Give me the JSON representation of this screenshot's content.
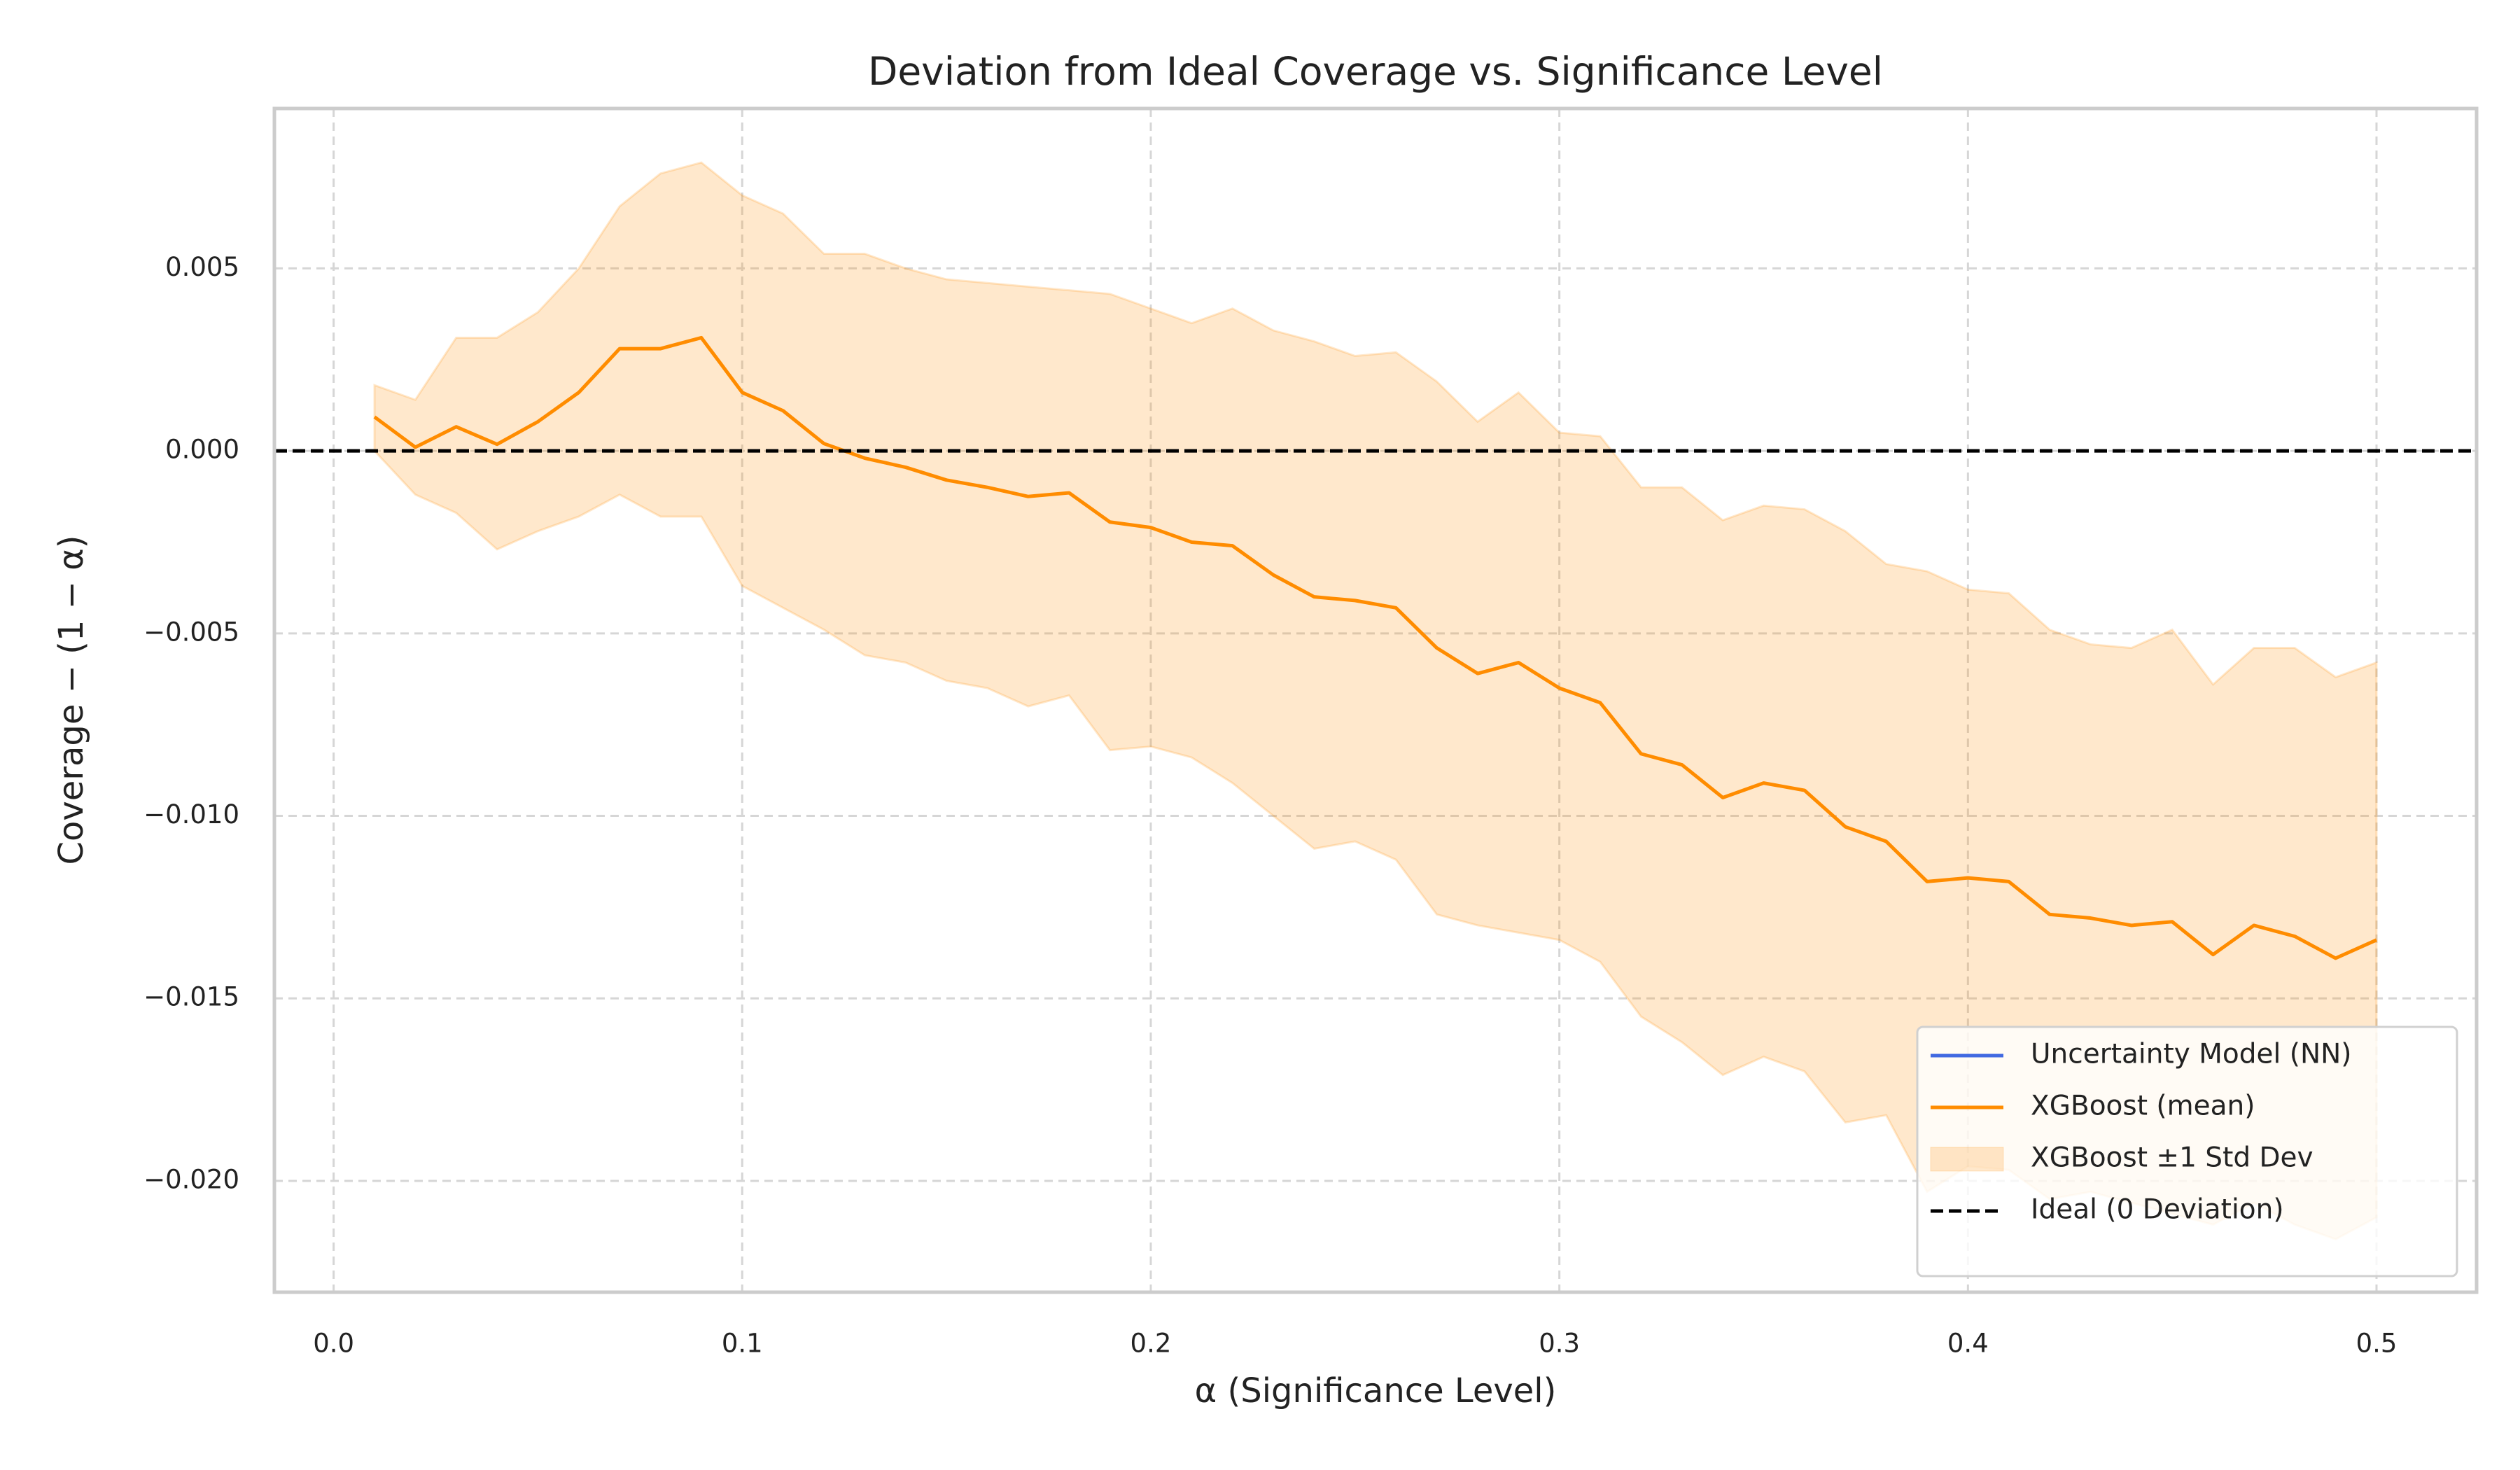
{
  "chart_data": {
    "type": "line",
    "title": "Deviation from Ideal Coverage vs. Significance Level",
    "x_label": "α (Significance Level)",
    "y_label": "Coverage − (1 − α)",
    "x": [
      0.01,
      0.02,
      0.03,
      0.04,
      0.05,
      0.06,
      0.07,
      0.08,
      0.09,
      0.1,
      0.11,
      0.12,
      0.13,
      0.14,
      0.15,
      0.16,
      0.17,
      0.18,
      0.19,
      0.2,
      0.21,
      0.22,
      0.23,
      0.24,
      0.25,
      0.26,
      0.27,
      0.28,
      0.29,
      0.3,
      0.31,
      0.32,
      0.33,
      0.34,
      0.35,
      0.36,
      0.37,
      0.38,
      0.39,
      0.4,
      0.41,
      0.42,
      0.43,
      0.44,
      0.45,
      0.46,
      0.47,
      0.48,
      0.49,
      0.5
    ],
    "series": [
      {
        "name": "Uncertainty Model (NN)",
        "type": "line",
        "color": "#4169e1"
      },
      {
        "name": "XGBoost (mean)",
        "type": "line",
        "color": "#ff8c00",
        "values": [
          0.00093,
          0.0001,
          0.00066,
          0.00018,
          0.0008,
          0.0016,
          0.0028,
          0.0028,
          0.0031,
          0.0016,
          0.0011,
          0.0002,
          -0.0002,
          -0.00045,
          -0.0008,
          -0.001,
          -0.00125,
          -0.00115,
          -0.00195,
          -0.0021,
          -0.0025,
          -0.0026,
          -0.0034,
          -0.004,
          -0.0041,
          -0.0043,
          -0.0054,
          -0.0061,
          -0.0058,
          -0.0065,
          -0.0069,
          -0.0083,
          -0.0086,
          -0.0095,
          -0.0091,
          -0.0093,
          -0.0103,
          -0.0107,
          -0.0118,
          -0.0117,
          -0.0118,
          -0.0127,
          -0.0128,
          -0.013,
          -0.0129,
          -0.0138,
          -0.013,
          -0.0133,
          -0.0139,
          -0.0134
        ]
      },
      {
        "name": "XGBoost ±1 Std Dev",
        "type": "band",
        "color": "#ff8c00",
        "alpha": 0.2,
        "upper": [
          0.0018,
          0.0014,
          0.0031,
          0.0031,
          0.0038,
          0.005,
          0.0067,
          0.0076,
          0.0079,
          0.007,
          0.0065,
          0.0054,
          0.0054,
          0.005,
          0.0047,
          0.0046,
          0.0045,
          0.0044,
          0.0043,
          0.0039,
          0.0035,
          0.0039,
          0.0033,
          0.003,
          0.0026,
          0.0027,
          0.0019,
          0.0008,
          0.0016,
          0.0005,
          0.0004,
          -0.001,
          -0.001,
          -0.0019,
          -0.0015,
          -0.0016,
          -0.0022,
          -0.0031,
          -0.0033,
          -0.0038,
          -0.0039,
          -0.0049,
          -0.0053,
          -0.0054,
          -0.0049,
          -0.0064,
          -0.0054,
          -0.0054,
          -0.0062,
          -0.0058
        ],
        "lower": [
          0.0,
          -0.0012,
          -0.0017,
          -0.0027,
          -0.0022,
          -0.0018,
          -0.0012,
          -0.0018,
          -0.0018,
          -0.0037,
          -0.0043,
          -0.0049,
          -0.0056,
          -0.0058,
          -0.0063,
          -0.0065,
          -0.007,
          -0.0067,
          -0.0082,
          -0.0081,
          -0.0084,
          -0.0091,
          -0.01,
          -0.0109,
          -0.0107,
          -0.0112,
          -0.0127,
          -0.013,
          -0.0132,
          -0.0134,
          -0.014,
          -0.0155,
          -0.0162,
          -0.0171,
          -0.0166,
          -0.017,
          -0.0184,
          -0.0182,
          -0.0203,
          -0.0196,
          -0.0197,
          -0.0205,
          -0.0203,
          -0.0206,
          -0.0209,
          -0.0212,
          -0.0206,
          -0.0212,
          -0.0216,
          -0.021
        ]
      },
      {
        "name": "Ideal (0 Deviation)",
        "type": "hline",
        "color": "#000000",
        "dashed": true,
        "value": 0
      }
    ],
    "xlim": [
      -0.0145,
      0.5245
    ],
    "ylim": [
      -0.02305,
      0.00938
    ],
    "xticks": [
      {
        "value": 0,
        "label": "0.0"
      },
      0.1,
      0.2,
      0.3,
      0.4,
      0.5
    ],
    "yticks": [
      {
        "value": -0.02,
        "label": "−0.020"
      },
      {
        "value": -0.015,
        "label": "−0.015"
      },
      {
        "value": -0.01,
        "label": "−0.010"
      },
      {
        "value": -0.005,
        "label": "−0.005"
      },
      {
        "value": 0,
        "label": "0.000"
      },
      0.005
    ],
    "grid": true,
    "legend": "lower right"
  }
}
